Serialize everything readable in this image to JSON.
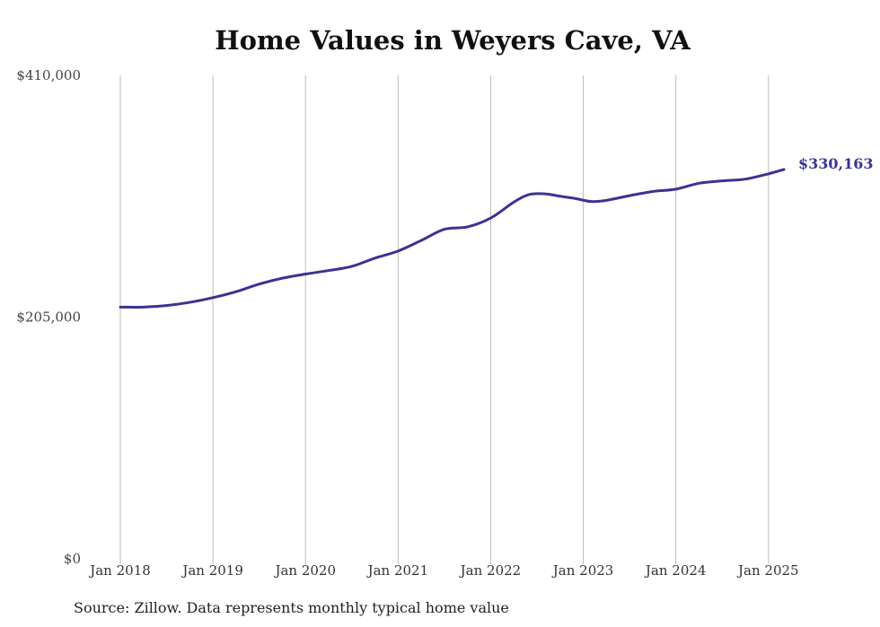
{
  "title": "Home Values in Weyers Cave, VA",
  "source": "Source: Zillow. Data represents monthly typical home value",
  "colors": {
    "line": "#3a3393",
    "grid": "#bdbdbd",
    "end_label": "#3a3393"
  },
  "chart_data": {
    "type": "line",
    "title": "Home Values in Weyers Cave, VA",
    "xlabel": "",
    "ylabel": "",
    "ylim": [
      0,
      410000
    ],
    "xlim": [
      "2018-01",
      "2025-03"
    ],
    "yticks": [
      {
        "value": 0,
        "label": "$0"
      },
      {
        "value": 205000,
        "label": "$205,000"
      },
      {
        "value": 410000,
        "label": "$410,000"
      }
    ],
    "xticks": [
      {
        "date": "2018-01",
        "label": "Jan 2018"
      },
      {
        "date": "2019-01",
        "label": "Jan 2019"
      },
      {
        "date": "2020-01",
        "label": "Jan 2020"
      },
      {
        "date": "2021-01",
        "label": "Jan 2021"
      },
      {
        "date": "2022-01",
        "label": "Jan 2022"
      },
      {
        "date": "2023-01",
        "label": "Jan 2023"
      },
      {
        "date": "2024-01",
        "label": "Jan 2024"
      },
      {
        "date": "2025-01",
        "label": "Jan 2025"
      }
    ],
    "grid": "vertical",
    "end_label": "$330,163",
    "series": [
      {
        "points": [
          [
            "2018-01",
            213500
          ],
          [
            "2018-04",
            213500
          ],
          [
            "2018-07",
            214800
          ],
          [
            "2018-10",
            217500
          ],
          [
            "2019-01",
            221500
          ],
          [
            "2019-04",
            226500
          ],
          [
            "2019-07",
            233000
          ],
          [
            "2019-10",
            238000
          ],
          [
            "2020-01",
            241500
          ],
          [
            "2020-04",
            244500
          ],
          [
            "2020-07",
            248000
          ],
          [
            "2020-10",
            255000
          ],
          [
            "2021-01",
            261000
          ],
          [
            "2021-04",
            270000
          ],
          [
            "2021-07",
            279500
          ],
          [
            "2021-10",
            281500
          ],
          [
            "2022-01",
            289000
          ],
          [
            "2022-04",
            302500
          ],
          [
            "2022-06",
            309000
          ],
          [
            "2022-08",
            309500
          ],
          [
            "2022-10",
            307500
          ],
          [
            "2022-12",
            305500
          ],
          [
            "2023-02",
            303000
          ],
          [
            "2023-04",
            304000
          ],
          [
            "2023-07",
            308000
          ],
          [
            "2023-10",
            311500
          ],
          [
            "2024-01",
            313500
          ],
          [
            "2024-04",
            318500
          ],
          [
            "2024-07",
            320500
          ],
          [
            "2024-10",
            322000
          ],
          [
            "2025-01",
            326500
          ],
          [
            "2025-03",
            330163
          ]
        ]
      }
    ]
  }
}
